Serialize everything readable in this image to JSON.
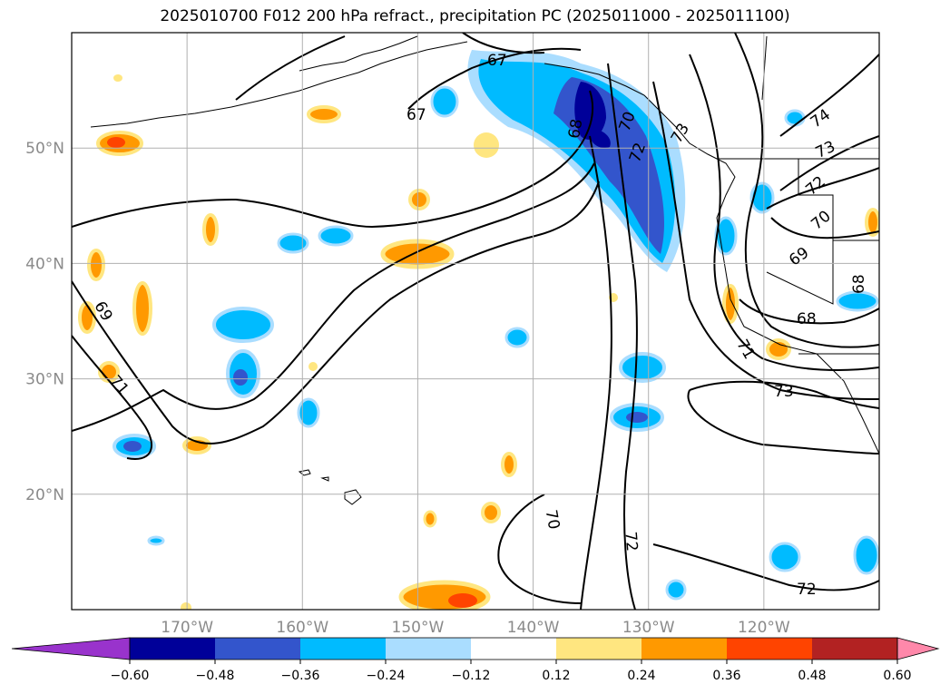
{
  "title": "2025010700 F012 200 hPa refract., precipitation PC (2025011000 - 2025011100)",
  "map": {
    "projection": "PlateCarree",
    "extent": {
      "lon_min": 180,
      "lon_max": 250,
      "lat_min": 10,
      "lat_max": 60
    },
    "lat_ticks": [
      {
        "label": "20°N",
        "value": 20
      },
      {
        "label": "30°N",
        "value": 30
      },
      {
        "label": "40°N",
        "value": 40
      },
      {
        "label": "50°N",
        "value": 50
      }
    ],
    "lon_ticks": [
      {
        "label": "170°W",
        "value": 190
      },
      {
        "label": "160°W",
        "value": 200
      },
      {
        "label": "150°W",
        "value": 210
      },
      {
        "label": "140°W",
        "value": 220
      },
      {
        "label": "130°W",
        "value": 230
      },
      {
        "label": "120°W",
        "value": 240
      }
    ],
    "gridlines": true,
    "contour_labels": [
      "67",
      "67",
      "68",
      "69",
      "71",
      "70",
      "72",
      "73",
      "74",
      "73",
      "72",
      "70",
      "69",
      "68",
      "68",
      "71",
      "73",
      "70",
      "72",
      "72"
    ]
  },
  "colorbar": {
    "extend": "both",
    "ticks": [
      "−0.60",
      "−0.48",
      "−0.36",
      "−0.24",
      "−0.12",
      "0.12",
      "0.24",
      "0.36",
      "0.48",
      "0.60"
    ],
    "colors": [
      "#9933cc",
      "#000099",
      "#3355cc",
      "#00bbff",
      "#aaddff",
      "#ffffff",
      "#ffe680",
      "#ff9900",
      "#ff4400",
      "#b22222",
      "#ff88aa"
    ]
  }
}
